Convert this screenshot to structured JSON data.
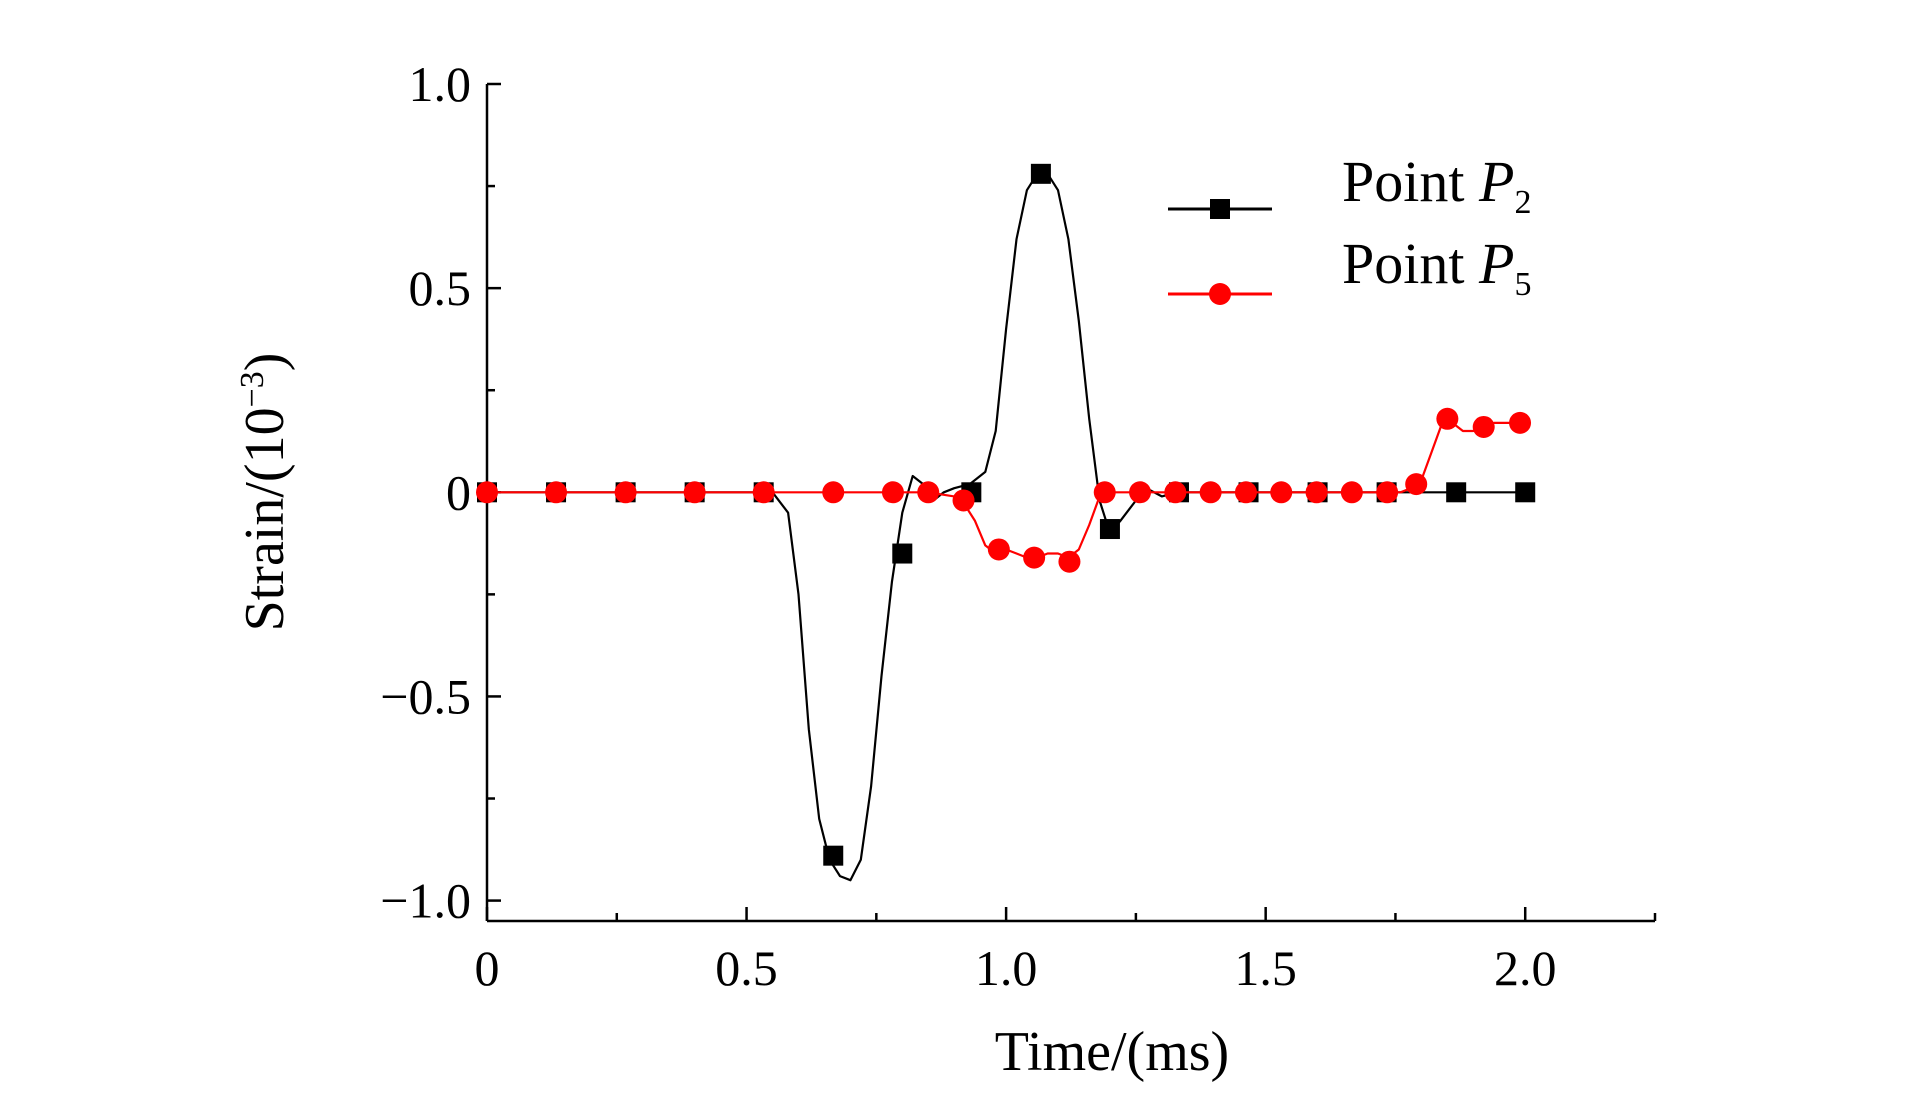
{
  "chart_data": {
    "type": "line",
    "title": "",
    "xlabel": "Time/(ms)",
    "ylabel_prefix": "Strain/(10",
    "ylabel_exponent": "−3",
    "ylabel_suffix": ")",
    "xlim": [
      0,
      2.25
    ],
    "ylim": [
      -1.05,
      1.0
    ],
    "x_ticks": [
      0,
      0.5,
      1.0,
      1.5,
      2.0
    ],
    "x_tick_labels": [
      "0",
      "0.5",
      "1.0",
      "1.5",
      "2.0"
    ],
    "x_minor_ticks": [
      0.25,
      0.75,
      1.25,
      1.75,
      2.25
    ],
    "y_ticks": [
      1.0,
      0.5,
      0,
      -0.5,
      -1.0
    ],
    "y_tick_labels": [
      "1.0",
      "0.5",
      "0",
      "−0.5",
      "−1.0"
    ],
    "y_minor_ticks": [
      0.75,
      0.25,
      -0.25,
      -0.75
    ],
    "grid": false,
    "legend_position": "top-right",
    "series": [
      {
        "name": "Point P2",
        "legend_label": "Point ",
        "legend_italic": "P",
        "legend_sub": "2",
        "color": "#000000",
        "marker": "square",
        "line": {
          "x": [
            0,
            0.3,
            0.55,
            0.58,
            0.6,
            0.62,
            0.64,
            0.66,
            0.68,
            0.7,
            0.72,
            0.74,
            0.76,
            0.78,
            0.8,
            0.82,
            0.84,
            0.86,
            0.88,
            0.9,
            0.93,
            0.96,
            0.98,
            1.0,
            1.02,
            1.04,
            1.06,
            1.08,
            1.1,
            1.12,
            1.14,
            1.16,
            1.18,
            1.2,
            1.22,
            1.25,
            1.27,
            1.3,
            1.33,
            1.4,
            1.5,
            1.6,
            1.7,
            1.8,
            1.9,
            1.95,
            2.0
          ],
          "y": [
            0,
            0,
            0,
            -0.05,
            -0.25,
            -0.58,
            -0.8,
            -0.9,
            -0.94,
            -0.95,
            -0.9,
            -0.72,
            -0.45,
            -0.22,
            -0.05,
            0.04,
            0.02,
            -0.02,
            0.0,
            0.01,
            0.02,
            0.05,
            0.15,
            0.4,
            0.62,
            0.74,
            0.78,
            0.78,
            0.74,
            0.62,
            0.42,
            0.18,
            -0.02,
            -0.1,
            -0.07,
            -0.02,
            0.01,
            -0.01,
            0,
            0,
            0,
            0,
            0,
            0,
            0,
            0,
            0
          ]
        },
        "markers": {
          "x": [
            0,
            0.133,
            0.267,
            0.4,
            0.533,
            0.667,
            0.8,
            0.933,
            1.067,
            1.2,
            1.333,
            1.467,
            1.6,
            1.733,
            1.867,
            2.0
          ],
          "y": [
            0,
            0,
            0,
            0,
            0,
            -0.89,
            -0.15,
            0,
            0.78,
            -0.09,
            0,
            0,
            0,
            0,
            0,
            0
          ]
        }
      },
      {
        "name": "Point P5",
        "legend_label": "Point ",
        "legend_italic": "P",
        "legend_sub": "5",
        "color": "#ff0000",
        "marker": "circle",
        "line": {
          "x": [
            0,
            0.5,
            0.85,
            0.9,
            0.92,
            0.94,
            0.96,
            0.98,
            1.0,
            1.02,
            1.04,
            1.06,
            1.08,
            1.1,
            1.12,
            1.14,
            1.16,
            1.18,
            1.2,
            1.3,
            1.5,
            1.7,
            1.76,
            1.78,
            1.8,
            1.82,
            1.84,
            1.86,
            1.88,
            1.9,
            1.92,
            1.94,
            1.96,
            1.98
          ],
          "y": [
            0,
            0,
            0,
            -0.01,
            -0.03,
            -0.07,
            -0.13,
            -0.15,
            -0.14,
            -0.15,
            -0.16,
            -0.16,
            -0.15,
            -0.15,
            -0.16,
            -0.14,
            -0.08,
            -0.01,
            0,
            0,
            0,
            0,
            0,
            0.01,
            0.03,
            0.1,
            0.17,
            0.17,
            0.15,
            0.15,
            0.16,
            0.17,
            0.17,
            0.17
          ]
        },
        "markers": {
          "x": [
            0,
            0.133,
            0.267,
            0.4,
            0.533,
            0.667,
            0.782,
            0.85,
            0.918,
            0.986,
            1.054,
            1.122,
            1.19,
            1.258,
            1.326,
            1.394,
            1.462,
            1.53,
            1.598,
            1.666,
            1.734,
            1.79,
            1.85,
            1.92,
            1.99
          ],
          "y": [
            0,
            0,
            0,
            0,
            0,
            0,
            0,
            0,
            -0.02,
            -0.14,
            -0.16,
            -0.17,
            0,
            0,
            0,
            0,
            0,
            0,
            0,
            0,
            0,
            0.02,
            0.18,
            0.16,
            0.17
          ]
        }
      }
    ]
  }
}
